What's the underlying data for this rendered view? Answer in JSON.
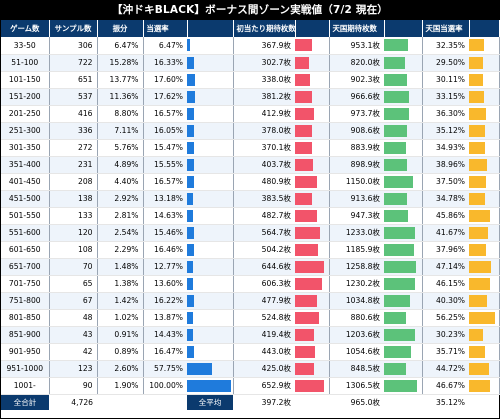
{
  "title": "【沖ドキBLACK】ボーナス間ゾーン実戦値（7/2 現在）",
  "colors": {
    "header_bg": "#0b3a6e",
    "bar_blue": "#1f7bdc",
    "bar_red": "#f2546a",
    "bar_green": "#5cc27a",
    "bar_orange": "#f9b82c"
  },
  "headers": [
    "ゲーム数",
    "サンプル数",
    "振分",
    "当選率",
    "",
    "初当たり期待枚数",
    "",
    "天国期待枚数",
    "",
    "天国当選率",
    ""
  ],
  "rows": [
    {
      "game": "33-50",
      "samples": "306",
      "dist": "6.47%",
      "rate": "6.47%",
      "rate_v": 6.47,
      "first": "367.9枚",
      "first_v": 367.9,
      "heaven": "953.1枚",
      "heaven_v": 953.1,
      "hrate": "32.35%",
      "hrate_v": 32.35
    },
    {
      "game": "51-100",
      "samples": "722",
      "dist": "15.28%",
      "rate": "16.33%",
      "rate_v": 16.33,
      "first": "302.7枚",
      "first_v": 302.7,
      "heaven": "820.0枚",
      "heaven_v": 820.0,
      "hrate": "29.50%",
      "hrate_v": 29.5
    },
    {
      "game": "101-150",
      "samples": "651",
      "dist": "13.77%",
      "rate": "17.60%",
      "rate_v": 17.6,
      "first": "338.0枚",
      "first_v": 338.0,
      "heaven": "902.3枚",
      "heaven_v": 902.3,
      "hrate": "30.11%",
      "hrate_v": 30.11
    },
    {
      "game": "151-200",
      "samples": "537",
      "dist": "11.36%",
      "rate": "17.62%",
      "rate_v": 17.62,
      "first": "381.2枚",
      "first_v": 381.2,
      "heaven": "966.6枚",
      "heaven_v": 966.6,
      "hrate": "33.15%",
      "hrate_v": 33.15
    },
    {
      "game": "201-250",
      "samples": "416",
      "dist": "8.80%",
      "rate": "16.57%",
      "rate_v": 16.57,
      "first": "412.9枚",
      "first_v": 412.9,
      "heaven": "973.7枚",
      "heaven_v": 973.7,
      "hrate": "36.30%",
      "hrate_v": 36.3
    },
    {
      "game": "251-300",
      "samples": "336",
      "dist": "7.11%",
      "rate": "16.05%",
      "rate_v": 16.05,
      "first": "378.0枚",
      "first_v": 378.0,
      "heaven": "908.6枚",
      "heaven_v": 908.6,
      "hrate": "35.12%",
      "hrate_v": 35.12
    },
    {
      "game": "301-350",
      "samples": "272",
      "dist": "5.76%",
      "rate": "15.47%",
      "rate_v": 15.47,
      "first": "370.1枚",
      "first_v": 370.1,
      "heaven": "883.9枚",
      "heaven_v": 883.9,
      "hrate": "34.93%",
      "hrate_v": 34.93
    },
    {
      "game": "351-400",
      "samples": "231",
      "dist": "4.89%",
      "rate": "15.55%",
      "rate_v": 15.55,
      "first": "403.7枚",
      "first_v": 403.7,
      "heaven": "898.9枚",
      "heaven_v": 898.9,
      "hrate": "38.96%",
      "hrate_v": 38.96
    },
    {
      "game": "401-450",
      "samples": "208",
      "dist": "4.40%",
      "rate": "16.57%",
      "rate_v": 16.57,
      "first": "480.9枚",
      "first_v": 480.9,
      "heaven": "1150.0枚",
      "heaven_v": 1150.0,
      "hrate": "37.50%",
      "hrate_v": 37.5
    },
    {
      "game": "451-500",
      "samples": "138",
      "dist": "2.92%",
      "rate": "13.18%",
      "rate_v": 13.18,
      "first": "383.5枚",
      "first_v": 383.5,
      "heaven": "913.6枚",
      "heaven_v": 913.6,
      "hrate": "34.78%",
      "hrate_v": 34.78
    },
    {
      "game": "501-550",
      "samples": "133",
      "dist": "2.81%",
      "rate": "14.63%",
      "rate_v": 14.63,
      "first": "482.7枚",
      "first_v": 482.7,
      "heaven": "947.3枚",
      "heaven_v": 947.3,
      "hrate": "45.86%",
      "hrate_v": 45.86
    },
    {
      "game": "551-600",
      "samples": "120",
      "dist": "2.54%",
      "rate": "15.46%",
      "rate_v": 15.46,
      "first": "564.7枚",
      "first_v": 564.7,
      "heaven": "1233.0枚",
      "heaven_v": 1233.0,
      "hrate": "41.67%",
      "hrate_v": 41.67
    },
    {
      "game": "601-650",
      "samples": "108",
      "dist": "2.29%",
      "rate": "16.46%",
      "rate_v": 16.46,
      "first": "504.2枚",
      "first_v": 504.2,
      "heaven": "1185.9枚",
      "heaven_v": 1185.9,
      "hrate": "37.96%",
      "hrate_v": 37.96
    },
    {
      "game": "651-700",
      "samples": "70",
      "dist": "1.48%",
      "rate": "12.77%",
      "rate_v": 12.77,
      "first": "644.6枚",
      "first_v": 644.6,
      "heaven": "1258.8枚",
      "heaven_v": 1258.8,
      "hrate": "47.14%",
      "hrate_v": 47.14
    },
    {
      "game": "701-750",
      "samples": "65",
      "dist": "1.38%",
      "rate": "13.60%",
      "rate_v": 13.6,
      "first": "606.3枚",
      "first_v": 606.3,
      "heaven": "1230.2枚",
      "heaven_v": 1230.2,
      "hrate": "46.15%",
      "hrate_v": 46.15
    },
    {
      "game": "751-800",
      "samples": "67",
      "dist": "1.42%",
      "rate": "16.22%",
      "rate_v": 16.22,
      "first": "477.9枚",
      "first_v": 477.9,
      "heaven": "1034.8枚",
      "heaven_v": 1034.8,
      "hrate": "40.30%",
      "hrate_v": 40.3
    },
    {
      "game": "801-850",
      "samples": "48",
      "dist": "1.02%",
      "rate": "13.87%",
      "rate_v": 13.87,
      "first": "524.8枚",
      "first_v": 524.8,
      "heaven": "880.6枚",
      "heaven_v": 880.6,
      "hrate": "56.25%",
      "hrate_v": 56.25
    },
    {
      "game": "851-900",
      "samples": "43",
      "dist": "0.91%",
      "rate": "14.43%",
      "rate_v": 14.43,
      "first": "419.4枚",
      "first_v": 419.4,
      "heaven": "1203.6枚",
      "heaven_v": 1203.6,
      "hrate": "30.23%",
      "hrate_v": 30.23
    },
    {
      "game": "901-950",
      "samples": "42",
      "dist": "0.89%",
      "rate": "16.47%",
      "rate_v": 16.47,
      "first": "443.0枚",
      "first_v": 443.0,
      "heaven": "1054.6枚",
      "heaven_v": 1054.6,
      "hrate": "35.71%",
      "hrate_v": 35.71
    },
    {
      "game": "951-1000",
      "samples": "123",
      "dist": "2.60%",
      "rate": "57.75%",
      "rate_v": 57.75,
      "first": "425.0枚",
      "first_v": 425.0,
      "heaven": "848.5枚",
      "heaven_v": 848.5,
      "hrate": "44.72%",
      "hrate_v": 44.72
    },
    {
      "game": "1001-",
      "samples": "90",
      "dist": "1.90%",
      "rate": "100.00%",
      "rate_v": 100.0,
      "first": "652.9枚",
      "first_v": 652.9,
      "heaven": "1306.5枚",
      "heaven_v": 1306.5,
      "hrate": "46.67%",
      "hrate_v": 46.67
    }
  ],
  "footer": {
    "total_label": "全合計",
    "total_samples": "4,726",
    "avg_label": "全平均",
    "avg_first": "397.2枚",
    "avg_heaven": "965.0枚",
    "avg_hrate": "35.12%"
  },
  "scales": {
    "rate_max": 100,
    "first_max": 700,
    "heaven_max": 1400,
    "hrate_max": 60
  }
}
